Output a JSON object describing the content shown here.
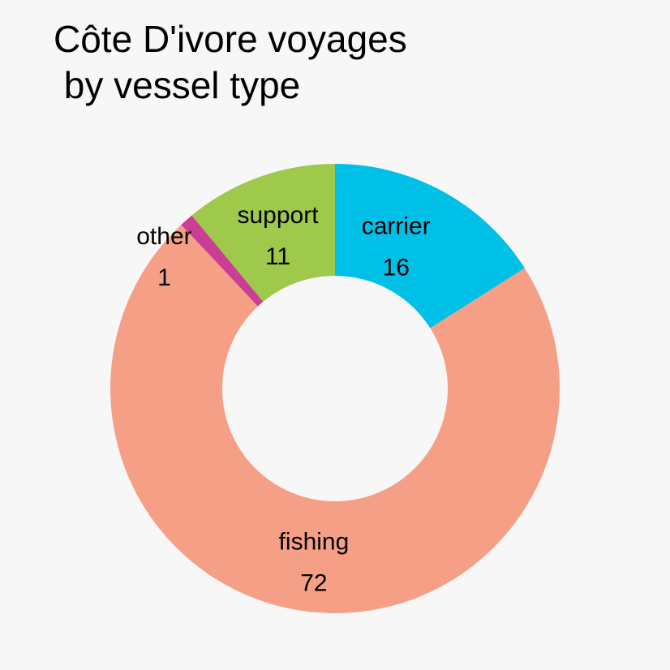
{
  "chart_data": {
    "type": "pie",
    "donut": true,
    "title_lines": [
      "Côte D'ivore voyages",
      " by vessel type"
    ],
    "slices": [
      {
        "label": "carrier",
        "value": 16,
        "color": "#00c0e8"
      },
      {
        "label": "fishing",
        "value": 72,
        "color": "#f5a086"
      },
      {
        "label": "other",
        "value": 1,
        "color": "#cc3d96"
      },
      {
        "label": "support",
        "value": 11,
        "color": "#9ec94a"
      }
    ],
    "start": "top",
    "direction": "clockwise"
  }
}
